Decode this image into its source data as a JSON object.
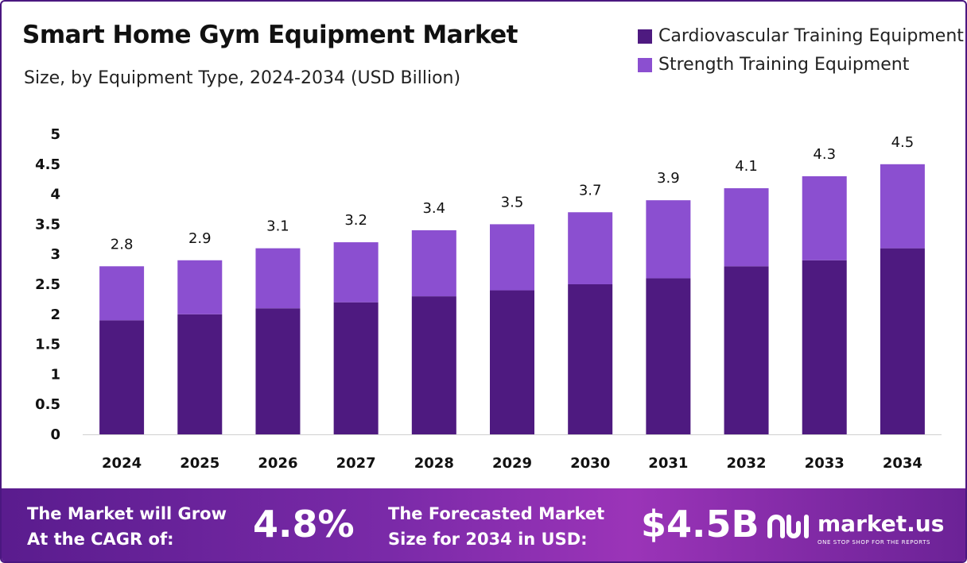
{
  "header": {
    "title": "Smart Home Gym Equipment Market",
    "subtitle": "Size, by Equipment Type, 2024-2034 (USD Billion)"
  },
  "legend": {
    "items": [
      {
        "label": "Cardiovascular Training Equipment",
        "color": "#4e1a80"
      },
      {
        "label": "Strength Training Equipment",
        "color": "#8b4fd0"
      }
    ]
  },
  "chart_data": {
    "type": "bar",
    "stacked": true,
    "categories": [
      "2024",
      "2025",
      "2026",
      "2027",
      "2028",
      "2029",
      "2030",
      "2031",
      "2032",
      "2033",
      "2034"
    ],
    "series": [
      {
        "name": "Cardiovascular Training Equipment",
        "color": "#4e1a80",
        "values": [
          1.9,
          2.0,
          2.1,
          2.2,
          2.3,
          2.4,
          2.5,
          2.6,
          2.8,
          2.9,
          3.1
        ]
      },
      {
        "name": "Strength Training Equipment",
        "color": "#8b4fd0",
        "values": [
          0.9,
          0.9,
          1.0,
          1.0,
          1.1,
          1.1,
          1.2,
          1.3,
          1.3,
          1.4,
          1.4
        ]
      }
    ],
    "totals": [
      "2.8",
      "2.9",
      "3.1",
      "3.2",
      "3.4",
      "3.5",
      "3.7",
      "3.9",
      "4.1",
      "4.3",
      "4.5"
    ],
    "yticks": [
      "0",
      "0.5",
      "1",
      "1.5",
      "2",
      "2.5",
      "3",
      "3.5",
      "4",
      "4.5",
      "5"
    ],
    "ylim": [
      0,
      5
    ],
    "grid": false,
    "legend_position": "top-right"
  },
  "banner": {
    "cagr_text_line1": "The Market will Grow",
    "cagr_text_line2": "At the CAGR of:",
    "cagr_value": "4.8%",
    "forecast_text_line1": "The Forecasted Market",
    "forecast_text_line2": "Size for 2034 in USD:",
    "forecast_value": "$4.5B",
    "logo_name": "market.us",
    "logo_tagline": "ONE STOP SHOP FOR THE REPORTS",
    "logo_icon": "market-us-logo-icon"
  }
}
